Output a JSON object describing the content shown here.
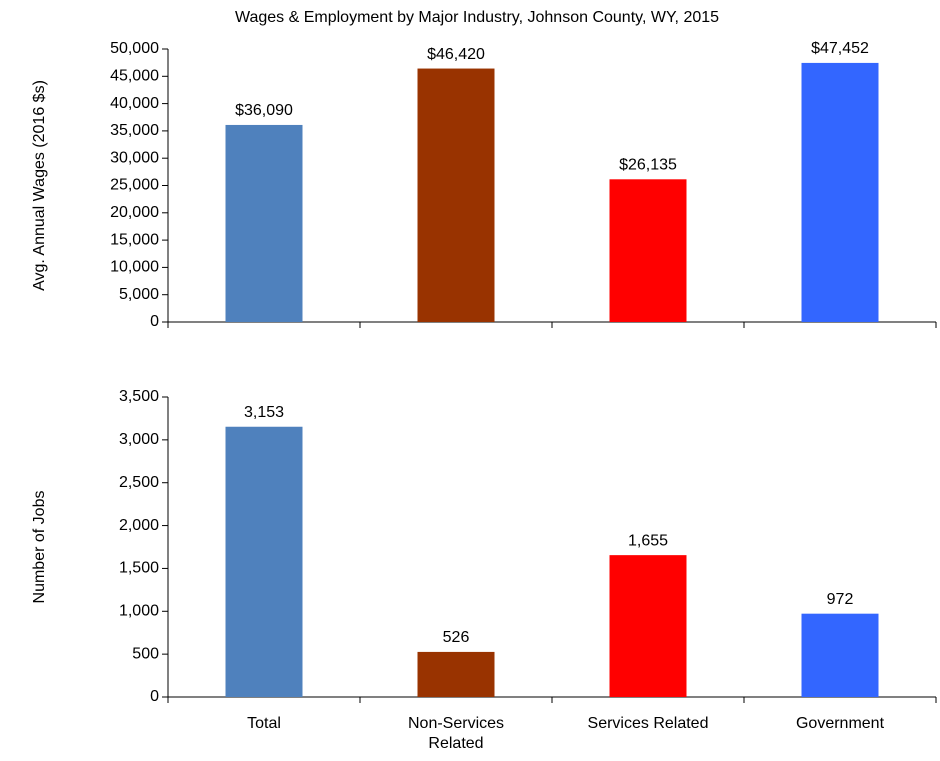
{
  "chart_data": [
    {
      "type": "bar",
      "title": "Wages & Employment by Major Industry, Johnson County, WY, 2015",
      "ylabel": "Avg. Annual Wages (2016 $s)",
      "values": [
        36090,
        46420,
        26135,
        47452
      ],
      "value_labels": [
        "$36,090",
        "$46,420",
        "$26,135",
        "$47,452"
      ],
      "colors": [
        "#4f81bd",
        "#993300",
        "#ff0000",
        "#3366ff"
      ],
      "ylim": [
        0,
        50000
      ],
      "yticks": [
        0,
        {
          "value": 5000,
          "label": "5,000"
        },
        {
          "value": 10000,
          "label": "10,000"
        },
        {
          "value": 15000,
          "label": "15,000"
        },
        {
          "value": 20000,
          "label": "20,000"
        },
        {
          "value": 25000,
          "label": "25,000"
        },
        {
          "value": 30000,
          "label": "30,000"
        },
        {
          "value": 35000,
          "label": "35,000"
        },
        {
          "value": 40000,
          "label": "40,000"
        },
        {
          "value": 45000,
          "label": "45,000"
        },
        {
          "value": 50000,
          "label": "50,000"
        }
      ]
    },
    {
      "type": "bar",
      "ylabel": "Number of Jobs",
      "categories": [
        "Total",
        "Non-Services Related",
        "Services Related",
        "Government"
      ],
      "values": [
        3153,
        526,
        1655,
        972
      ],
      "value_labels": [
        "3,153",
        "526",
        "1,655",
        "972"
      ],
      "colors": [
        "#4f81bd",
        "#993300",
        "#ff0000",
        "#3366ff"
      ],
      "ylim": [
        0,
        3500
      ],
      "yticks": [
        0,
        500,
        {
          "value": 1000,
          "label": "1,000"
        },
        {
          "value": 1500,
          "label": "1,500"
        },
        {
          "value": 2000,
          "label": "2,000"
        },
        {
          "value": 2500,
          "label": "2,500"
        },
        {
          "value": 3000,
          "label": "3,000"
        },
        {
          "value": 3500,
          "label": "3,500"
        }
      ]
    }
  ]
}
